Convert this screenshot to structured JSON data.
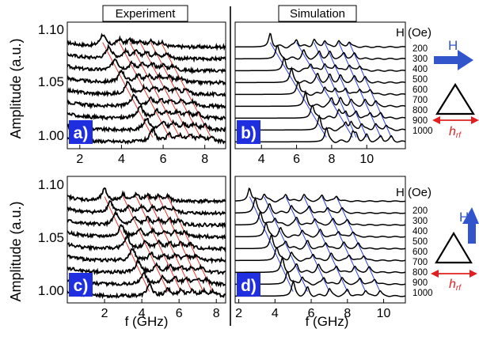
{
  "headers": {
    "experiment": "Experiment",
    "simulation": "Simulation"
  },
  "field_label": "H (Oe)",
  "field_values": [
    "200",
    "300",
    "400",
    "500",
    "600",
    "700",
    "800",
    "900",
    "1000"
  ],
  "y_axis": {
    "label": "Amplitude (a.u.)",
    "ticks": [
      "1.10",
      "1.05",
      "1.00"
    ],
    "tick_values": [
      1.1,
      1.05,
      1.0
    ]
  },
  "x_axis_label": "f (GHz)",
  "insets": {
    "field_symbol": "H",
    "rf_symbol": "h",
    "rf_subscript": "rf",
    "field_arrow_color": "#3355cc",
    "rf_arrow_color": "#e02020"
  },
  "colors": {
    "trace": "#000000",
    "experiment_guide": "#e8332b",
    "simulation_guide": "#2a3cf0",
    "panel_tag_bg": "#1f2fe0",
    "panel_tag_text": "#ffffff"
  },
  "chart_data": [
    {
      "panel": "a)",
      "type": "line",
      "source": "Experiment",
      "field_orientation": "horizontal",
      "xlim": [
        1.4,
        9.0
      ],
      "x_ticks": [
        "2",
        "4",
        "6",
        "8"
      ],
      "x_tick_values": [
        2,
        4,
        6,
        8
      ],
      "ylim": [
        0.992,
        1.104
      ],
      "trace_offset": 0.0105,
      "baseline_at_200_Oe": 1.082,
      "series_names": [
        "200",
        "300",
        "400",
        "500",
        "600",
        "700",
        "800",
        "900",
        "1000"
      ],
      "peak_frequencies_GHz": [
        [
          3.1,
          3.9,
          4.4,
          4.9,
          5.4,
          5.9
        ],
        [
          3.4,
          4.2,
          4.7,
          5.2,
          5.7,
          6.2
        ],
        [
          3.7,
          4.5,
          5.0,
          5.5,
          6.0,
          6.5
        ],
        [
          4.0,
          4.8,
          5.3,
          5.8,
          6.3,
          6.8
        ],
        [
          4.3,
          5.1,
          5.6,
          6.1,
          6.6,
          7.1
        ],
        [
          4.6,
          5.4,
          5.9,
          6.4,
          6.9,
          7.4
        ],
        [
          4.9,
          5.7,
          6.2,
          6.7,
          7.2,
          7.7
        ],
        [
          5.2,
          6.0,
          6.5,
          7.0,
          7.5,
          8.0
        ],
        [
          5.5,
          6.3,
          6.8,
          7.3,
          7.8,
          8.3
        ]
      ]
    },
    {
      "panel": "b)",
      "type": "line",
      "source": "Simulation",
      "field_orientation": "horizontal",
      "xlim": [
        2.5,
        12.2
      ],
      "x_ticks": [
        "4",
        "6",
        "8",
        "10"
      ],
      "x_tick_values": [
        4,
        6,
        8,
        10
      ],
      "ylim": [
        0.992,
        1.104
      ],
      "trace_offset": 0.0105,
      "baseline_at_200_Oe": 1.082,
      "series_names": [
        "200",
        "300",
        "400",
        "500",
        "600",
        "700",
        "800",
        "900",
        "1000"
      ],
      "peak_frequencies_GHz": [
        [
          4.5,
          6.0,
          7.0,
          7.6,
          8.4,
          9.0
        ],
        [
          4.9,
          6.4,
          7.3,
          7.9,
          8.7,
          9.3
        ],
        [
          5.3,
          6.8,
          7.6,
          8.2,
          9.0,
          9.6
        ],
        [
          5.7,
          7.2,
          7.9,
          8.5,
          9.3,
          9.9
        ],
        [
          6.1,
          7.6,
          8.2,
          8.8,
          9.6,
          10.2
        ],
        [
          6.5,
          8.0,
          8.5,
          9.1,
          9.9,
          10.5
        ],
        [
          6.9,
          8.4,
          8.8,
          9.4,
          10.2,
          10.8
        ],
        [
          7.3,
          8.8,
          9.1,
          9.7,
          10.5,
          11.1
        ],
        [
          7.7,
          9.2,
          9.4,
          10.0,
          10.8,
          11.4
        ]
      ]
    },
    {
      "panel": "c)",
      "type": "line",
      "source": "Experiment",
      "field_orientation": "vertical",
      "xlim": [
        0.0,
        8.5
      ],
      "x_ticks": [
        "2",
        "4",
        "6",
        "8"
      ],
      "x_tick_values": [
        2,
        4,
        6,
        8
      ],
      "ylim": [
        0.992,
        1.104
      ],
      "trace_offset": 0.0105,
      "baseline_at_200_Oe": 1.082,
      "series_names": [
        "200",
        "300",
        "400",
        "500",
        "600",
        "700",
        "800",
        "900",
        "1000"
      ],
      "peak_frequencies_GHz": [
        [
          2.0,
          3.0,
          3.7,
          4.3,
          4.9,
          5.4
        ],
        [
          2.3,
          3.3,
          4.0,
          4.6,
          5.2,
          5.7
        ],
        [
          2.6,
          3.6,
          4.3,
          4.9,
          5.5,
          6.0
        ],
        [
          2.9,
          3.9,
          4.6,
          5.2,
          5.8,
          6.3
        ],
        [
          3.2,
          4.2,
          4.9,
          5.5,
          6.1,
          6.6
        ],
        [
          3.5,
          4.5,
          5.2,
          5.8,
          6.4,
          6.9
        ],
        [
          3.8,
          4.8,
          5.5,
          6.1,
          6.7,
          7.2
        ],
        [
          4.1,
          5.1,
          5.8,
          6.4,
          7.0,
          7.5
        ],
        [
          4.4,
          5.4,
          6.1,
          6.7,
          7.3,
          7.8
        ]
      ]
    },
    {
      "panel": "d)",
      "type": "line",
      "source": "Simulation",
      "field_orientation": "vertical",
      "xlim": [
        1.8,
        11.2
      ],
      "x_ticks": [
        "2",
        "4",
        "6",
        "8",
        "10"
      ],
      "x_tick_values": [
        2,
        4,
        6,
        8,
        10
      ],
      "ylim": [
        0.992,
        1.104
      ],
      "trace_offset": 0.0105,
      "baseline_at_200_Oe": 1.082,
      "series_names": [
        "200",
        "300",
        "400",
        "500",
        "600",
        "700",
        "800",
        "900",
        "1000"
      ],
      "peak_frequencies_GHz": [
        [
          2.6,
          3.4,
          4.6,
          5.6,
          6.6,
          7.4
        ],
        [
          2.9,
          3.7,
          4.9,
          5.9,
          6.9,
          7.7
        ],
        [
          3.2,
          4.0,
          5.2,
          6.2,
          7.2,
          8.0
        ],
        [
          3.5,
          4.3,
          5.5,
          6.5,
          7.5,
          8.3
        ],
        [
          3.8,
          4.6,
          5.8,
          6.8,
          7.8,
          8.6
        ],
        [
          4.1,
          4.9,
          6.1,
          7.1,
          8.1,
          8.9
        ],
        [
          4.4,
          5.2,
          6.4,
          7.4,
          8.4,
          9.2
        ],
        [
          4.7,
          5.5,
          6.7,
          7.7,
          8.7,
          9.5
        ],
        [
          5.0,
          5.8,
          7.0,
          8.0,
          9.0,
          9.8
        ]
      ]
    }
  ]
}
